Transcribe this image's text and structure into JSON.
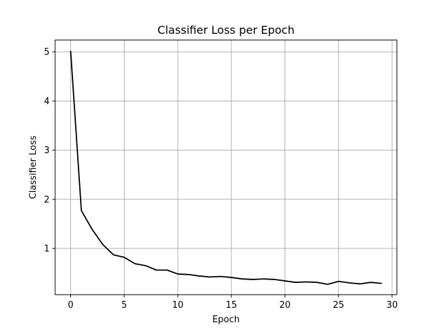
{
  "chart_data": {
    "type": "line",
    "title": "Classifier Loss per Epoch",
    "xlabel": "Epoch",
    "ylabel": "Classifier Loss",
    "xlim": [
      -1.45,
      30.45
    ],
    "ylim": [
      0.06,
      5.24
    ],
    "xticks": [
      0,
      5,
      10,
      15,
      20,
      25,
      30
    ],
    "yticks": [
      1,
      2,
      3,
      4,
      5
    ],
    "grid": true,
    "line_color": "#000000",
    "grid_color": "#b0b0b0",
    "series": [
      {
        "x": [
          0,
          1,
          2,
          3,
          4,
          5,
          6,
          7,
          8,
          9,
          10,
          11,
          12,
          13,
          14,
          15,
          16,
          17,
          18,
          19,
          20,
          21,
          22,
          23,
          24,
          25,
          26,
          27,
          28,
          29
        ],
        "values": [
          5.01,
          1.77,
          1.39,
          1.08,
          0.87,
          0.82,
          0.69,
          0.65,
          0.56,
          0.56,
          0.48,
          0.47,
          0.44,
          0.42,
          0.43,
          0.41,
          0.38,
          0.37,
          0.38,
          0.37,
          0.34,
          0.31,
          0.32,
          0.31,
          0.27,
          0.33,
          0.3,
          0.28,
          0.31,
          0.29
        ]
      }
    ]
  }
}
